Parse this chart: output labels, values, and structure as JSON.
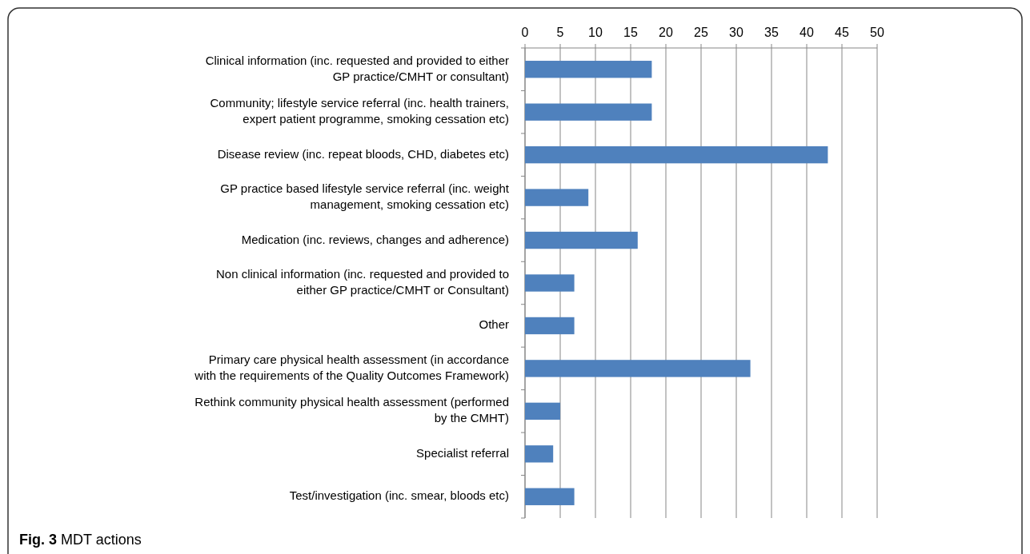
{
  "chart_data": {
    "type": "bar",
    "orientation": "horizontal",
    "categories": [
      "Clinical information (inc. requested and provided to either GP practice/CMHT or consultant)",
      "Community; lifestyle service referral (inc. health trainers, expert patient programme, smoking cessation etc)",
      "Disease review (inc. repeat bloods, CHD, diabetes etc)",
      "GP practice based lifestyle service referral (inc. weight management, smoking cessation etc)",
      "Medication (inc. reviews, changes and adherence)",
      "Non clinical information (inc. requested and provided to either GP practice/CMHT or Consultant)",
      "Other",
      "Primary care physical health assessment (in accordance with the requirements of the Quality Outcomes Framework)",
      "Rethink community physical health assessment (performed by the CMHT)",
      "Specialist referral",
      "Test/investigation (inc. smear, bloods etc)"
    ],
    "values": [
      18,
      18,
      43,
      9,
      16,
      7,
      7,
      32,
      5,
      4,
      7
    ],
    "color": "#4f81bd",
    "xlim": [
      0,
      50
    ],
    "xticks": [
      0,
      5,
      10,
      15,
      20,
      25,
      30,
      35,
      40,
      45,
      50
    ],
    "grid": "x",
    "annotations": [
      "Fig. 3 MDT actions"
    ]
  }
}
